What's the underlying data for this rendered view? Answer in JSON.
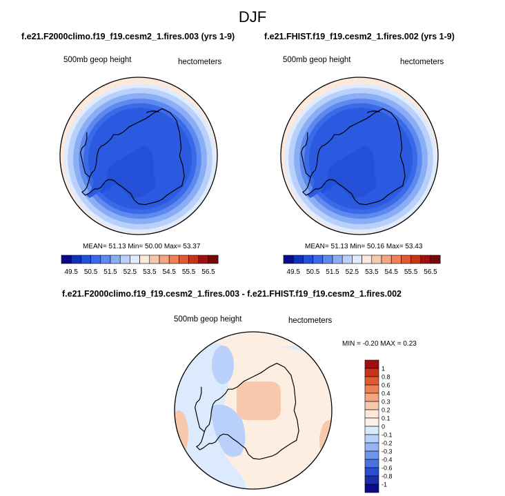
{
  "season": "DJF",
  "chart_data": [
    {
      "type": "heatmap",
      "title": "f.e21.F2000climo.f19_f19.cesm2_1.fires.003 (yrs 1-9)",
      "variable": "500mb geop height",
      "units": "hectometers",
      "stats": {
        "mean": "51.13",
        "min": "50.00",
        "max": "53.37"
      },
      "stats_text": "MEAN=  51.13  Min=  50.00  Max=  53.37",
      "colorbar": {
        "ticks": [
          "49.5",
          "50.5",
          "51.5",
          "52.5",
          "53.5",
          "54.5",
          "55.5",
          "56.5"
        ],
        "colors": [
          "#0a0a8c",
          "#1030b8",
          "#2050d8",
          "#3a6ae8",
          "#5e8af0",
          "#8aaef5",
          "#b8d0fa",
          "#e0ecfe",
          "#fde8dc",
          "#f8c8ac",
          "#f4a680",
          "#ee8058",
          "#e05a34",
          "#c8341a",
          "#a01010",
          "#780808"
        ]
      },
      "rings": [
        {
          "level": "50.0",
          "color": "#2a5ae0"
        },
        {
          "level": "50.5",
          "color": "#3a6ae8"
        },
        {
          "level": "51.5",
          "color": "#5e8af0"
        },
        {
          "level": "52.0",
          "color": "#8aaef5"
        },
        {
          "level": "52.5",
          "color": "#b8d0fa"
        },
        {
          "level": "53.0",
          "color": "#e0ecfe"
        },
        {
          "level": "53.5",
          "color": "#fde8dc"
        }
      ]
    },
    {
      "type": "heatmap",
      "title": "f.e21.FHIST.f19_f19.cesm2_1.fires.002 (yrs 1-9)",
      "variable": "500mb geop height",
      "units": "hectometers",
      "stats": {
        "mean": "51.13",
        "min": "50.16",
        "max": "53.43"
      },
      "stats_text": "MEAN=  51.13  Min=  50.16  Max=  53.43",
      "colorbar": {
        "ticks": [
          "49.5",
          "50.5",
          "51.5",
          "52.5",
          "53.5",
          "54.5",
          "55.5",
          "56.5"
        ],
        "colors": [
          "#0a0a8c",
          "#1030b8",
          "#2050d8",
          "#3a6ae8",
          "#5e8af0",
          "#8aaef5",
          "#b8d0fa",
          "#e0ecfe",
          "#fde8dc",
          "#f8c8ac",
          "#f4a680",
          "#ee8058",
          "#e05a34",
          "#c8341a",
          "#a01010",
          "#780808"
        ]
      },
      "rings": [
        {
          "level": "50.0",
          "color": "#2a5ae0"
        },
        {
          "level": "50.5",
          "color": "#3a6ae8"
        },
        {
          "level": "51.5",
          "color": "#5e8af0"
        },
        {
          "level": "52.0",
          "color": "#8aaef5"
        },
        {
          "level": "52.5",
          "color": "#b8d0fa"
        },
        {
          "level": "53.0",
          "color": "#e0ecfe"
        },
        {
          "level": "53.5",
          "color": "#fde8dc"
        }
      ]
    },
    {
      "type": "heatmap",
      "title": "f.e21.F2000climo.f19_f19.cesm2_1.fires.003 - f.e21.FHIST.f19_f19.cesm2_1.fires.002",
      "variable": "500mb geop height",
      "units": "hectometers",
      "stats": {
        "min": "-0.20",
        "max": "0.23"
      },
      "stats_text": "MIN = -0.20 MAX =  0.23",
      "colorbar": {
        "orientation": "vertical",
        "ticks": [
          "1",
          "0.8",
          "0.6",
          "0.4",
          "0.3",
          "0.2",
          "0.1",
          "0",
          "-0.1",
          "-0.2",
          "-0.3",
          "-0.4",
          "-0.6",
          "-0.8",
          "-1"
        ],
        "colors": [
          "#a01010",
          "#c8341a",
          "#e05a34",
          "#ee8058",
          "#f4a680",
          "#f8c8ac",
          "#fde8dc",
          "#fdf0e6",
          "#dceafd",
          "#b8d0fa",
          "#94b4f4",
          "#6e94ec",
          "#4a74e0",
          "#2a4ed0",
          "#1a2ea8",
          "#0a0a8c"
        ]
      }
    }
  ]
}
